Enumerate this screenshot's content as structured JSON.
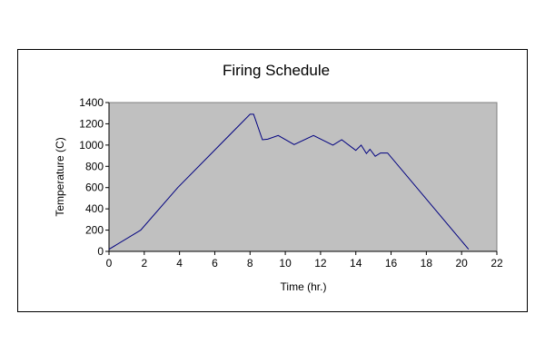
{
  "chart_data": {
    "type": "line",
    "title": "Firing Schedule",
    "xlabel": "Time (hr.)",
    "ylabel": "Temperature (C)",
    "xlim": [
      0,
      22
    ],
    "ylim": [
      0,
      1400
    ],
    "x_ticks": [
      0,
      2,
      4,
      6,
      8,
      10,
      12,
      14,
      16,
      18,
      20,
      22
    ],
    "y_ticks": [
      0,
      200,
      400,
      600,
      800,
      1000,
      1200,
      1400
    ],
    "grid": false,
    "legend": "none",
    "plot_background": "#c0c0c0",
    "line_color": "#000080",
    "series": [
      {
        "x": [
          0,
          1.8,
          3.9,
          8.0,
          8.2,
          8.7,
          9.0,
          9.6,
          10.5,
          11.6,
          12.7,
          13.2,
          14.0,
          14.3,
          14.6,
          14.8,
          15.1,
          15.4,
          15.8,
          20.4
        ],
        "y": [
          20,
          200,
          600,
          1290,
          1290,
          1050,
          1055,
          1090,
          1005,
          1090,
          1000,
          1050,
          950,
          1000,
          920,
          960,
          895,
          925,
          925,
          20
        ]
      }
    ]
  }
}
